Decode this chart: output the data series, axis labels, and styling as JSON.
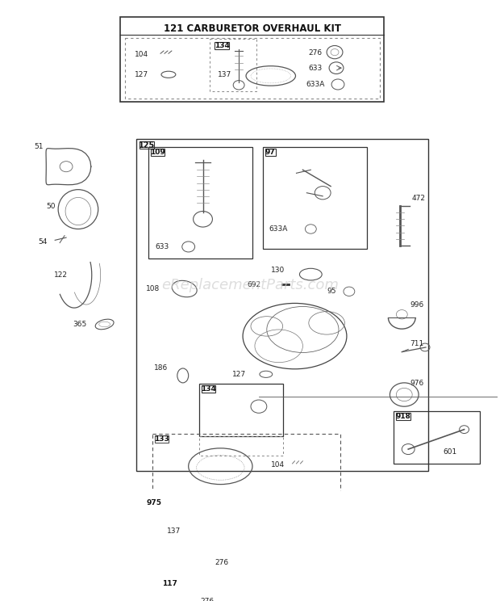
{
  "bg_color": "#ffffff",
  "title": "121 CARBURETOR OVERHAUL KIT",
  "watermark": "eReplacementParts.com",
  "fig_w": 6.2,
  "fig_h": 7.44,
  "dpi": 100
}
